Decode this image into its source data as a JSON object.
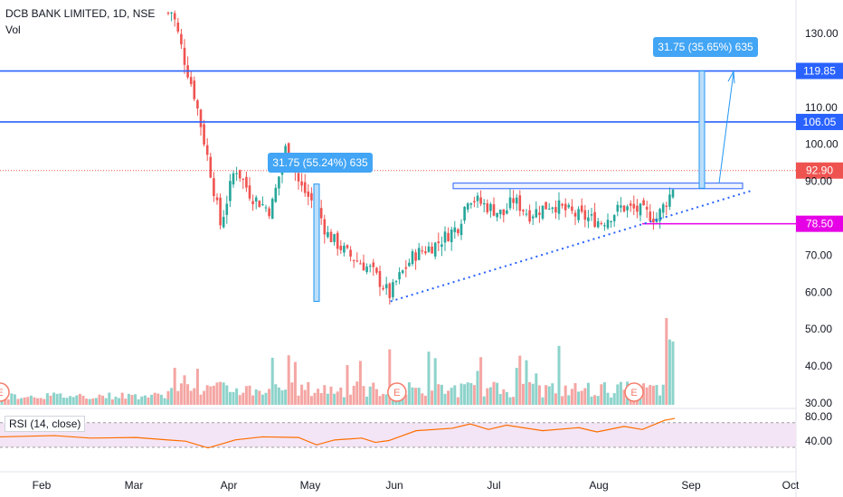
{
  "header": {
    "title": "DCB BANK LIMITED, 1D, NSE",
    "volume_label": "Vol",
    "rsi_label": "RSI (14, close)"
  },
  "colors": {
    "up": "#26a69a",
    "down": "#ef5350",
    "vol_up": "#8dd3cb",
    "vol_down": "#f4a6a3",
    "level_line": "#2962ff",
    "level_badge": "#2962ff",
    "support_badge": "#e600e6",
    "trend_line": "#2962ff",
    "measure_fill": "#bbdefb",
    "measure_badge": "#42a5f5",
    "rsi_line": "#ff6d00",
    "rsi_band": "#f3e5f5",
    "price_line": "#ef5350",
    "earnings_badge": "#f57c6c"
  },
  "chart_data": {
    "type": "candlestick",
    "y_axis_ticks": [
      "130.00",
      "110.00",
      "100.00",
      "90.00",
      "70.00",
      "60.00",
      "50.00",
      "40.00",
      "30.00"
    ],
    "y_range": [
      25,
      143
    ],
    "x_axis_labels": [
      "Feb",
      "Mar",
      "Apr",
      "May",
      "Jun",
      "Jul",
      "Aug",
      "Sep",
      "Oct"
    ],
    "price_levels": [
      {
        "value": 119.85,
        "label": "119.85",
        "style": "solid"
      },
      {
        "value": 106.05,
        "label": "106.05",
        "style": "solid"
      },
      {
        "value": 92.9,
        "label": "92.90",
        "style": "dotted"
      },
      {
        "value": 78.5,
        "label": "78.50",
        "style": "support"
      }
    ],
    "measurements": [
      {
        "label": "31.75 (55.24%) 635",
        "from": 57.5,
        "to": 89.25
      },
      {
        "label": "31.75 (35.65%) 635",
        "from": 88.1,
        "to": 119.85
      }
    ],
    "trend_line": {
      "from": [
        "May 26",
        57.5
      ],
      "to": [
        "Sep 20",
        87.5
      ]
    },
    "resistance_zone": {
      "low": 88.0,
      "high": 89.5
    },
    "earnings_markers": [
      "Jan 28",
      "May 28",
      "Aug 12"
    ],
    "earnings_label": "E",
    "rsi": {
      "ticks": [
        "80.00",
        "40.00"
      ],
      "upper": 70,
      "lower": 30
    },
    "volume_axis_note": "Vol"
  }
}
